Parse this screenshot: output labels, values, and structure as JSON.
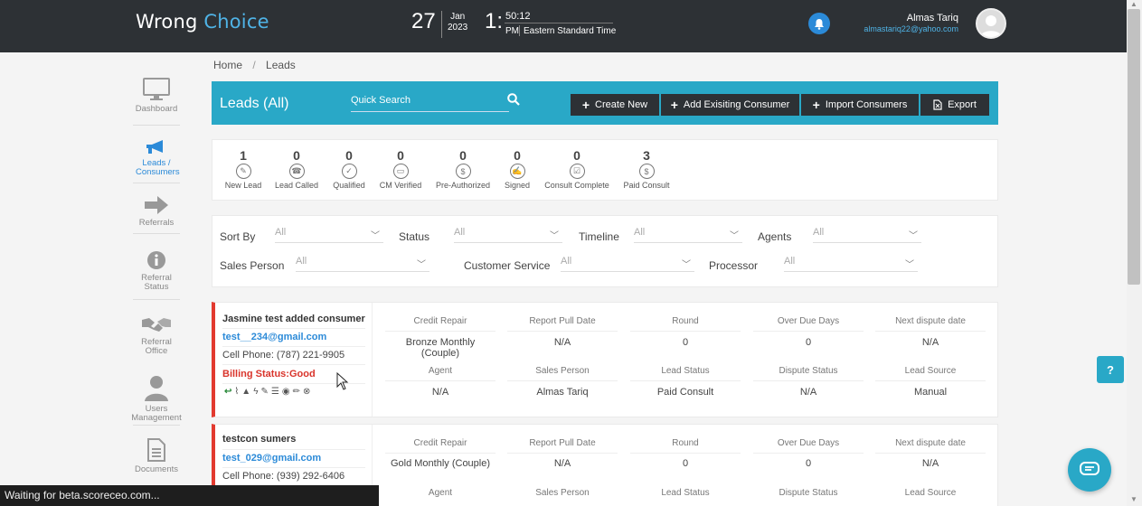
{
  "header": {
    "brand_part1": "Wrong",
    "brand_part2": "Choice",
    "date_day": "27",
    "date_month": "Jan",
    "date_year": "2023",
    "time_hour": "1:",
    "time_minutes": "50:12",
    "time_ampm": "PM",
    "timezone": "Eastern Standard Time",
    "user_name": "Almas Tariq",
    "user_email": "almastariq22@yahoo.com"
  },
  "sidebar": {
    "items": [
      {
        "label": "Dashboard",
        "icon": "monitor-icon"
      },
      {
        "label": "Leads / Consumers",
        "icon": "megaphone-icon",
        "active": true
      },
      {
        "label": "Referrals",
        "icon": "arrow-right-icon"
      },
      {
        "label": "Referral Status",
        "icon": "info-icon"
      },
      {
        "label": "Referral Office",
        "icon": "handshake-icon"
      },
      {
        "label": "Users Management",
        "icon": "user-icon"
      },
      {
        "label": "Documents",
        "icon": "document-icon"
      }
    ]
  },
  "breadcrumb": {
    "home": "Home",
    "current": "Leads"
  },
  "leads_bar": {
    "title": "Leads (All)",
    "search_placeholder": "Quick Search",
    "buttons": {
      "create_new": "Create New",
      "add_existing": "Add Exisiting Consumer",
      "import": "Import Consumers",
      "export": "Export"
    }
  },
  "stats": [
    {
      "count": "1",
      "label": "New Lead"
    },
    {
      "count": "0",
      "label": "Lead Called"
    },
    {
      "count": "0",
      "label": "Qualified"
    },
    {
      "count": "0",
      "label": "CM Verified"
    },
    {
      "count": "0",
      "label": "Pre-Authorized"
    },
    {
      "count": "0",
      "label": "Signed"
    },
    {
      "count": "0",
      "label": "Consult Complete"
    },
    {
      "count": "3",
      "label": "Paid Consult"
    }
  ],
  "filters": {
    "sort_by": {
      "label": "Sort By",
      "value": "All"
    },
    "status": {
      "label": "Status",
      "value": "All"
    },
    "timeline": {
      "label": "Timeline",
      "value": "All"
    },
    "agents": {
      "label": "Agents",
      "value": "All"
    },
    "sales_person": {
      "label": "Sales Person",
      "value": "All"
    },
    "customer_service": {
      "label": "Customer Service",
      "value": "All"
    },
    "processor": {
      "label": "Processor",
      "value": "All"
    }
  },
  "columns": {
    "row1": [
      "Credit Repair",
      "Report Pull Date",
      "Round",
      "Over Due Days",
      "Next dispute date"
    ],
    "row2": [
      "Agent",
      "Sales Person",
      "Lead Status",
      "Dispute Status",
      "Lead Source"
    ]
  },
  "leads": [
    {
      "name": "Jasmine test added consumer",
      "email": "test__234@gmail.com",
      "phone": "Cell Phone: (787) 221-9905",
      "billing": "Billing Status:Good",
      "row1": [
        "Bronze Monthly (Couple)",
        "N/A",
        "0",
        "0",
        "N/A"
      ],
      "row2": [
        "N/A",
        "Almas Tariq",
        "Paid Consult",
        "N/A",
        "Manual"
      ]
    },
    {
      "name": "testcon sumers",
      "email": "test_029@gmail.com",
      "phone": "Cell Phone: (939) 292-6406",
      "row1": [
        "Gold Monthly (Couple)",
        "N/A",
        "0",
        "0",
        "N/A"
      ]
    }
  ],
  "help_label": "?",
  "statusbar_text": "Waiting for beta.scoreceo.com...",
  "colors": {
    "accent": "#29a8c7",
    "header": "#2d3135",
    "link": "#2b8ad8",
    "alert": "#e23a2f"
  }
}
